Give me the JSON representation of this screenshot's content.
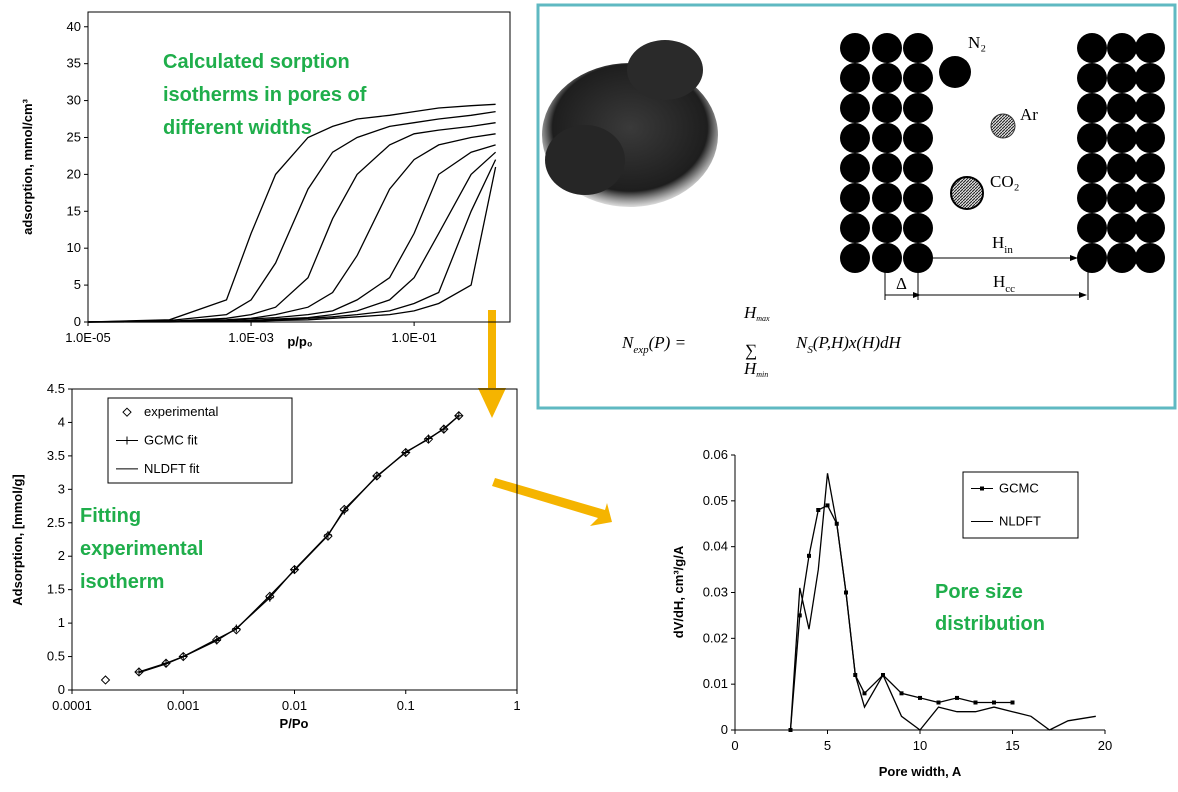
{
  "chart_data": [
    {
      "type": "line",
      "xscale": "log",
      "ylabel": "adsorption, mmol/cm³",
      "xlabel": "p/p₀",
      "annotation": [
        "Calculated sorption",
        "isotherms in pores of",
        "different widths"
      ],
      "xlim": [
        1e-05,
        1.5
      ],
      "xticks": [
        {
          "value": 1e-05,
          "label": "1.0E-05"
        },
        {
          "value": 0.001,
          "label": "1.0E-03"
        },
        {
          "value": 0.1,
          "label": "1.0E-01"
        }
      ],
      "ylim": [
        0,
        42
      ],
      "yticks": [
        0,
        5,
        10,
        15,
        20,
        25,
        30,
        35,
        40
      ],
      "x": [
        1e-05,
        0.0001,
        0.0005,
        0.001,
        0.002,
        0.005,
        0.01,
        0.02,
        0.05,
        0.1,
        0.2,
        0.5,
        1
      ],
      "series": [
        {
          "color": "#000000",
          "values": [
            0,
            0.3,
            3,
            12,
            20,
            25,
            26.5,
            27.5,
            28,
            28.5,
            29,
            29.3,
            29.5
          ]
        },
        {
          "color": "#000000",
          "values": [
            0,
            0.2,
            1,
            3,
            8,
            18,
            23,
            25,
            26.5,
            27,
            27.5,
            28,
            28.5
          ]
        },
        {
          "color": "#000000",
          "values": [
            0,
            0.1,
            0.5,
            1,
            2,
            6,
            14,
            20,
            24,
            25.5,
            26,
            26.5,
            27
          ]
        },
        {
          "color": "#000000",
          "values": [
            0,
            0.1,
            0.3,
            0.5,
            1,
            2,
            4,
            9,
            18,
            22,
            24,
            25,
            25.5
          ]
        },
        {
          "color": "#000000",
          "values": [
            0,
            0.05,
            0.2,
            0.4,
            0.6,
            1,
            1.5,
            3,
            6,
            12,
            20,
            23,
            24
          ]
        },
        {
          "color": "#000000",
          "values": [
            0,
            0.05,
            0.1,
            0.2,
            0.4,
            0.6,
            1,
            1.5,
            3,
            6,
            12,
            20,
            23
          ]
        },
        {
          "color": "#000000",
          "values": [
            0,
            0.05,
            0.1,
            0.2,
            0.3,
            0.5,
            0.7,
            1,
            1.5,
            2.5,
            4,
            15,
            22
          ]
        },
        {
          "color": "#000000",
          "values": [
            0,
            0,
            0.1,
            0.1,
            0.2,
            0.3,
            0.5,
            0.7,
            1,
            1.5,
            2.5,
            5,
            21
          ]
        }
      ]
    },
    {
      "type": "line",
      "xscale": "log",
      "ylabel": "Adsorption, [mmol/g]",
      "xlabel": "P/Po",
      "legend": "upper left",
      "annotation": [
        "Fitting",
        "experimental",
        "isotherm"
      ],
      "xlim": [
        0.0001,
        1
      ],
      "xticks": [
        0.0001,
        0.001,
        0.01,
        0.1,
        1
      ],
      "ylim": [
        0,
        4.5
      ],
      "yticks": [
        0,
        0.5,
        1,
        1.5,
        2,
        2.5,
        3,
        3.5,
        4,
        4.5
      ],
      "x": [
        0.0002,
        0.0004,
        0.0007,
        0.001,
        0.002,
        0.003,
        0.006,
        0.01,
        0.02,
        0.028,
        0.055,
        0.1,
        0.16,
        0.22,
        0.3
      ],
      "series": [
        {
          "name": "experimental",
          "color": "#000000",
          "marker": "diamond",
          "line": false,
          "values": [
            0.15,
            0.27,
            0.4,
            0.5,
            0.75,
            0.9,
            1.4,
            1.8,
            2.3,
            2.7,
            3.2,
            3.55,
            3.75,
            3.9,
            4.1
          ]
        },
        {
          "name": "GCMC fit",
          "color": "#000000",
          "marker": "plus",
          "line": true,
          "values": [
            null,
            0.27,
            0.4,
            0.5,
            0.74,
            0.92,
            1.38,
            1.8,
            2.32,
            2.68,
            3.2,
            3.55,
            3.76,
            3.9,
            4.1
          ]
        },
        {
          "name": "NLDFT fit",
          "color": "#000000",
          "marker": "none",
          "line": true,
          "values": [
            null,
            0.26,
            0.39,
            0.5,
            0.76,
            0.91,
            1.41,
            1.79,
            2.31,
            2.7,
            3.19,
            3.56,
            3.75,
            3.91,
            4.1
          ]
        }
      ]
    },
    {
      "type": "line",
      "ylabel": "dV/dH, cm³/g/A",
      "xlabel": "Pore width, A",
      "legend": "upper right",
      "annotation": [
        "Pore size",
        "distribution"
      ],
      "xlim": [
        0,
        20
      ],
      "xticks": [
        0,
        5,
        10,
        15,
        20
      ],
      "ylim": [
        0,
        0.06
      ],
      "yticks": [
        0,
        0.01,
        0.02,
        0.03,
        0.04,
        0.05,
        0.06
      ],
      "x": [
        3,
        3.5,
        4,
        4.5,
        5,
        5.5,
        6,
        6.5,
        7,
        8,
        9,
        10,
        11,
        12,
        13,
        14,
        15,
        16,
        17,
        18,
        19.5
      ],
      "series": [
        {
          "name": "GCMC",
          "color": "#000000",
          "marker": "square",
          "line": true,
          "values": [
            0,
            0.025,
            0.038,
            0.048,
            0.049,
            0.045,
            0.03,
            0.012,
            0.008,
            0.012,
            0.008,
            0.007,
            0.006,
            0.007,
            0.006,
            0.006,
            0.006,
            null,
            null,
            null,
            null
          ]
        },
        {
          "name": "NLDFT",
          "color": "#000000",
          "marker": "none",
          "line": true,
          "values": [
            0,
            0.031,
            0.022,
            0.035,
            0.056,
            0.045,
            0.03,
            0.012,
            0.005,
            0.012,
            0.003,
            0,
            0.005,
            0.004,
            0.004,
            0.005,
            0.004,
            0.003,
            0,
            0.002,
            0.003
          ]
        }
      ]
    }
  ],
  "diagram": {
    "n2": "N₂",
    "ar": "Ar",
    "co2": "CO₂",
    "h_in": {
      "main": "H",
      "sub": "in"
    },
    "delta": "Δ",
    "h_cc": {
      "main": "H",
      "sub": "cc"
    },
    "formula": {
      "lhs": "N",
      "lhs_sub": "exp",
      "lhs_arg": "(P) =",
      "sum": "∑",
      "upper": "H",
      "upper_sub": "max",
      "lower": "H",
      "lower_sub": "min",
      "term": "N",
      "term_sub": "S",
      "term_rest": "(P,H)x(H)dH"
    }
  }
}
